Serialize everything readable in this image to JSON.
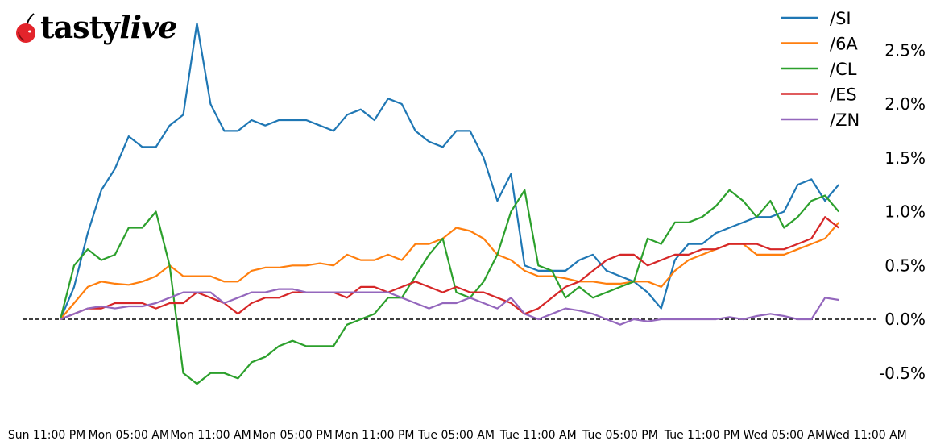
{
  "logo": {
    "text_bold": "tasty",
    "text_italic": "live",
    "cherry_color": "#e3242b"
  },
  "chart_data": {
    "type": "line",
    "title": "",
    "xlabel": "",
    "ylabel": "",
    "y_unit": "%",
    "ylim": [
      -0.9,
      2.85
    ],
    "yticks": [
      -0.5,
      0.0,
      0.5,
      1.0,
      1.5,
      2.0,
      2.5
    ],
    "ytick_labels": [
      "-0.5%",
      "0.0%",
      "0.5%",
      "1.0%",
      "1.5%",
      "2.0%",
      "2.5%"
    ],
    "xticks": [
      "Sun 23:00",
      "Mon 05:00",
      "Mon 11:00",
      "Mon 17:00",
      "Mon 23:00",
      "Tue 05:00",
      "Tue 11:00",
      "Tue 17:00",
      "Tue 23:00",
      "Wed 05:00",
      "Wed 11:00"
    ],
    "xtick_labels": [
      "Sun 11:00 PM",
      "Mon 05:00 AM",
      "Mon 11:00 AM",
      "Mon 05:00 PM",
      "Mon 11:00 PM",
      "Tue 05:00 AM",
      "Tue 11:00 AM",
      "Tue 05:00 PM",
      "Tue 11:00 PM",
      "Wed 05:00 AM",
      "Wed 11:00 AM"
    ],
    "zero_line": {
      "value": 0,
      "style": "dashed",
      "color": "#000000"
    },
    "grid": false,
    "legend_position": "top-right",
    "x": [
      "Mon 00:00",
      "Mon 01:00",
      "Mon 02:00",
      "Mon 03:00",
      "Mon 04:00",
      "Mon 05:00",
      "Mon 06:00",
      "Mon 07:00",
      "Mon 08:00",
      "Mon 09:00",
      "Mon 10:00",
      "Mon 11:00",
      "Mon 12:00",
      "Mon 13:00",
      "Mon 14:00",
      "Mon 15:00",
      "Mon 16:00",
      "Mon 17:00",
      "Mon 18:00",
      "Mon 19:00",
      "Mon 20:00",
      "Mon 21:00",
      "Mon 22:00",
      "Mon 23:00",
      "Tue 00:00",
      "Tue 01:00",
      "Tue 02:00",
      "Tue 03:00",
      "Tue 04:00",
      "Tue 05:00",
      "Tue 06:00",
      "Tue 07:00",
      "Tue 08:00",
      "Tue 09:00",
      "Tue 10:00",
      "Tue 11:00",
      "Tue 12:00",
      "Tue 13:00",
      "Tue 14:00",
      "Tue 15:00",
      "Tue 16:00",
      "Tue 17:00",
      "Tue 18:00",
      "Tue 19:00",
      "Tue 20:00",
      "Tue 21:00",
      "Tue 22:00",
      "Tue 23:00",
      "Wed 00:00",
      "Wed 01:00",
      "Wed 02:00",
      "Wed 03:00",
      "Wed 04:00",
      "Wed 05:00",
      "Wed 06:00",
      "Wed 07:00",
      "Wed 08:00",
      "Wed 09:00"
    ],
    "series": [
      {
        "name": "/SI",
        "color": "#1f77b4",
        "values": [
          0,
          0.3,
          0.8,
          1.2,
          1.4,
          1.7,
          1.6,
          1.6,
          1.8,
          1.9,
          2.75,
          2.0,
          1.75,
          1.75,
          1.85,
          1.8,
          1.85,
          1.85,
          1.85,
          1.8,
          1.75,
          1.9,
          1.95,
          1.85,
          2.05,
          2.0,
          1.75,
          1.65,
          1.6,
          1.75,
          1.75,
          1.5,
          1.1,
          1.35,
          0.5,
          0.45,
          0.45,
          0.45,
          0.55,
          0.6,
          0.45,
          0.4,
          0.35,
          0.25,
          0.1,
          0.55,
          0.7,
          0.7,
          0.8,
          0.85,
          0.9,
          0.95,
          0.95,
          1.0,
          1.25,
          1.3,
          1.1,
          1.25
        ]
      },
      {
        "name": "/6A",
        "color": "#ff7f0e",
        "values": [
          0,
          0.15,
          0.3,
          0.35,
          0.33,
          0.32,
          0.35,
          0.4,
          0.5,
          0.4,
          0.4,
          0.4,
          0.35,
          0.35,
          0.45,
          0.48,
          0.48,
          0.5,
          0.5,
          0.52,
          0.5,
          0.6,
          0.55,
          0.55,
          0.6,
          0.55,
          0.7,
          0.7,
          0.75,
          0.85,
          0.82,
          0.75,
          0.6,
          0.55,
          0.45,
          0.4,
          0.4,
          0.38,
          0.35,
          0.35,
          0.33,
          0.33,
          0.35,
          0.35,
          0.3,
          0.45,
          0.55,
          0.6,
          0.65,
          0.7,
          0.7,
          0.6,
          0.6,
          0.6,
          0.65,
          0.7,
          0.75,
          0.9
        ]
      },
      {
        "name": "/CL",
        "color": "#2ca02c",
        "values": [
          0,
          0.5,
          0.65,
          0.55,
          0.6,
          0.85,
          0.85,
          1.0,
          0.5,
          -0.5,
          -0.6,
          -0.5,
          -0.5,
          -0.55,
          -0.4,
          -0.35,
          -0.25,
          -0.2,
          -0.25,
          -0.25,
          -0.25,
          -0.05,
          0.0,
          0.05,
          0.2,
          0.2,
          0.4,
          0.6,
          0.75,
          0.25,
          0.2,
          0.35,
          0.6,
          1.0,
          1.2,
          0.5,
          0.45,
          0.2,
          0.3,
          0.2,
          0.25,
          0.3,
          0.35,
          0.75,
          0.7,
          0.9,
          0.9,
          0.95,
          1.05,
          1.2,
          1.1,
          0.95,
          1.1,
          0.85,
          0.95,
          1.1,
          1.15,
          1.0
        ]
      },
      {
        "name": "/ES",
        "color": "#d62728",
        "values": [
          0,
          0.05,
          0.1,
          0.1,
          0.15,
          0.15,
          0.15,
          0.1,
          0.15,
          0.15,
          0.25,
          0.2,
          0.15,
          0.05,
          0.15,
          0.2,
          0.2,
          0.25,
          0.25,
          0.25,
          0.25,
          0.2,
          0.3,
          0.3,
          0.25,
          0.3,
          0.35,
          0.3,
          0.25,
          0.3,
          0.25,
          0.25,
          0.2,
          0.15,
          0.05,
          0.1,
          0.2,
          0.3,
          0.35,
          0.45,
          0.55,
          0.6,
          0.6,
          0.5,
          0.55,
          0.6,
          0.6,
          0.65,
          0.65,
          0.7,
          0.7,
          0.7,
          0.65,
          0.65,
          0.7,
          0.75,
          0.95,
          0.85
        ]
      },
      {
        "name": "/ZN",
        "color": "#9467bd",
        "values": [
          0,
          0.05,
          0.1,
          0.12,
          0.1,
          0.12,
          0.12,
          0.15,
          0.2,
          0.25,
          0.25,
          0.25,
          0.15,
          0.2,
          0.25,
          0.25,
          0.28,
          0.28,
          0.25,
          0.25,
          0.25,
          0.25,
          0.25,
          0.25,
          0.25,
          0.2,
          0.15,
          0.1,
          0.15,
          0.15,
          0.2,
          0.15,
          0.1,
          0.2,
          0.05,
          0.0,
          0.05,
          0.1,
          0.08,
          0.05,
          0.0,
          -0.05,
          0.0,
          -0.02,
          0.0,
          0.0,
          0.0,
          0.0,
          0.0,
          0.02,
          0.0,
          0.03,
          0.05,
          0.03,
          0.0,
          0.0,
          0.2,
          0.18
        ]
      }
    ]
  }
}
